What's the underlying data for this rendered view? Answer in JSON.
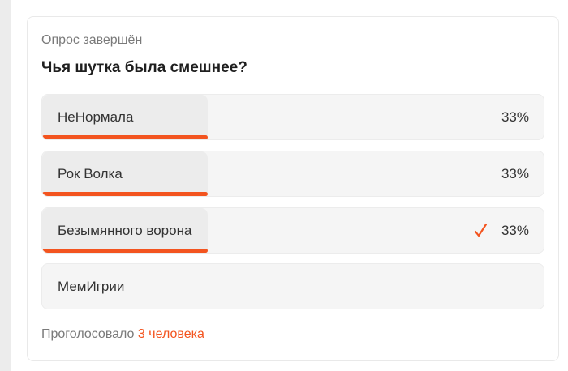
{
  "poll": {
    "status": "Опрос завершён",
    "question": "Чья шутка была смешнее?",
    "accent_color": "#f3541f",
    "options": [
      {
        "label": "НеНормала",
        "percent": "33%",
        "fill": 33,
        "voted": false
      },
      {
        "label": "Рок Волка",
        "percent": "33%",
        "fill": 33,
        "voted": false
      },
      {
        "label": "Безымянного ворона",
        "percent": "33%",
        "fill": 33,
        "voted": true
      },
      {
        "label": "МемИгрии",
        "percent": "",
        "fill": 0,
        "voted": false
      }
    ],
    "footer_prefix": "Проголосовало",
    "footer_count": "3 человека"
  }
}
